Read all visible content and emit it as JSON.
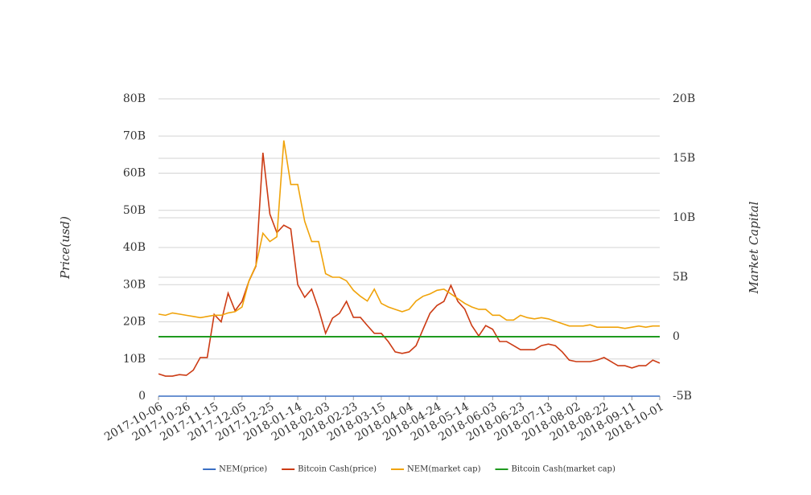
{
  "chart_data": {
    "type": "line",
    "y_label": "Price(usd)",
    "y2_label": "Market Capital",
    "x": [
      "2017-10-06",
      "2017-10-11",
      "2017-10-16",
      "2017-10-21",
      "2017-10-26",
      "2017-10-31",
      "2017-11-05",
      "2017-11-10",
      "2017-11-15",
      "2017-11-20",
      "2017-11-25",
      "2017-11-30",
      "2017-12-05",
      "2017-12-10",
      "2017-12-15",
      "2017-12-20",
      "2017-12-25",
      "2017-12-30",
      "2018-01-04",
      "2018-01-09",
      "2018-01-14",
      "2018-01-19",
      "2018-01-24",
      "2018-01-29",
      "2018-02-03",
      "2018-02-08",
      "2018-02-13",
      "2018-02-18",
      "2018-02-23",
      "2018-02-28",
      "2018-03-05",
      "2018-03-10",
      "2018-03-15",
      "2018-03-20",
      "2018-03-25",
      "2018-03-30",
      "2018-04-04",
      "2018-04-09",
      "2018-04-14",
      "2018-04-19",
      "2018-04-24",
      "2018-04-29",
      "2018-05-04",
      "2018-05-09",
      "2018-05-14",
      "2018-05-19",
      "2018-05-24",
      "2018-05-29",
      "2018-06-03",
      "2018-06-08",
      "2018-06-13",
      "2018-06-18",
      "2018-06-23",
      "2018-06-28",
      "2018-07-03",
      "2018-07-08",
      "2018-07-13",
      "2018-07-18",
      "2018-07-23",
      "2018-07-28",
      "2018-08-02",
      "2018-08-07",
      "2018-08-12",
      "2018-08-17",
      "2018-08-22",
      "2018-08-27",
      "2018-09-01",
      "2018-09-06",
      "2018-09-11",
      "2018-09-16",
      "2018-09-21",
      "2018-09-26",
      "2018-10-01"
    ],
    "xlim": [
      "2017-10-06",
      "2018-10-01"
    ],
    "xticks": [
      "2017-10-06",
      "2017-10-26",
      "2017-11-15",
      "2017-12-05",
      "2017-12-25",
      "2018-01-14",
      "2018-02-03",
      "2018-02-23",
      "2018-03-15",
      "2018-04-04",
      "2018-04-24",
      "2018-05-14",
      "2018-06-03",
      "2018-06-23",
      "2018-07-13",
      "2018-08-02",
      "2018-08-22",
      "2018-09-11",
      "2018-10-01"
    ],
    "ylim": [
      0,
      80000000000.0
    ],
    "yticks": [
      0,
      {
        "value": 10000000000.0,
        "label": "10B"
      },
      {
        "value": 20000000000.0,
        "label": "20B"
      },
      {
        "value": 30000000000.0,
        "label": "30B"
      },
      {
        "value": 40000000000.0,
        "label": "40B"
      },
      {
        "value": 50000000000.0,
        "label": "50B"
      },
      {
        "value": 60000000000.0,
        "label": "60B"
      },
      {
        "value": 70000000000.0,
        "label": "70B"
      },
      {
        "value": 80000000000.0,
        "label": "80B"
      }
    ],
    "y2lim": [
      -5000000000.0,
      20000000000.0
    ],
    "y2ticks": [
      {
        "value": -5000000000.0,
        "label": "-5B"
      },
      0,
      {
        "value": 5000000000.0,
        "label": "5B"
      },
      {
        "value": 10000000000.0,
        "label": "10B"
      },
      {
        "value": 15000000000.0,
        "label": "15B"
      },
      {
        "value": 20000000000.0,
        "label": "20B"
      }
    ],
    "grid": true,
    "legend": "bottom",
    "series": [
      {
        "name": "NEM(price)",
        "color": "#3a6fc4",
        "values": [
          0,
          0,
          0,
          0,
          0,
          0,
          0,
          0,
          0,
          0,
          0,
          0,
          0,
          0,
          0,
          0,
          0,
          0,
          0,
          0,
          0,
          0,
          0,
          0,
          0,
          0,
          0,
          0,
          0,
          0,
          0,
          0,
          0,
          0,
          0,
          0,
          0,
          0,
          0,
          0,
          0,
          0,
          0,
          0,
          0,
          0,
          0,
          0,
          0,
          0,
          0,
          0,
          0,
          0,
          0,
          0,
          0,
          0,
          0,
          0,
          0,
          0,
          0,
          0,
          0,
          0,
          0,
          0,
          0,
          0,
          0,
          0,
          0
        ]
      },
      {
        "name": "Bitcoin Cash(price)",
        "color": "#cc3b14",
        "values": [
          6000000000.0,
          5400000000.0,
          5400000000.0,
          5800000000.0,
          5600000000.0,
          7000000000.0,
          10400000000.0,
          10400000000.0,
          22000000000.0,
          20000000000.0,
          27700000000.0,
          23000000000.0,
          25500000000.0,
          31000000000.0,
          35000000000.0,
          65500000000.0,
          49000000000.0,
          44000000000.0,
          46000000000.0,
          45000000000.0,
          30000000000.0,
          26600000000.0,
          28800000000.0,
          23400000000.0,
          16900000000.0,
          21000000000.0,
          22300000000.0,
          25500000000.0,
          21200000000.0,
          21200000000.0,
          19000000000.0,
          16900000000.0,
          16900000000.0,
          14700000000.0,
          11900000000.0,
          11500000000.0,
          11900000000.0,
          13600000000.0,
          18000000000.0,
          22300000000.0,
          24400000000.0,
          25500000000.0,
          29800000000.0,
          25500000000.0,
          23400000000.0,
          19000000000.0,
          16200000000.0,
          19000000000.0,
          18000000000.0,
          14700000000.0,
          14700000000.0,
          13600000000.0,
          12500000000.0,
          12500000000.0,
          12500000000.0,
          13600000000.0,
          14000000000.0,
          13600000000.0,
          11900000000.0,
          9700000000.0,
          9300000000.0,
          9300000000.0,
          9300000000.0,
          9700000000.0,
          10400000000.0,
          9300000000.0,
          8200000000.0,
          8200000000.0,
          7600000000.0,
          8200000000.0,
          8200000000.0,
          9700000000.0,
          8900000000.0
        ]
      },
      {
        "name": "NEM(market cap)",
        "color": "#f0a30a",
        "axis": "y2",
        "values": [
          1900000000.0,
          1800000000.0,
          2000000000.0,
          1900000000.0,
          1800000000.0,
          1700000000.0,
          1600000000.0,
          1700000000.0,
          1800000000.0,
          1800000000.0,
          2000000000.0,
          2100000000.0,
          2500000000.0,
          4700000000.0,
          6000000000.0,
          8700000000.0,
          8000000000.0,
          8400000000.0,
          16500000000.0,
          12800000000.0,
          12800000000.0,
          9700000000.0,
          8000000000.0,
          8000000000.0,
          5300000000.0,
          5000000000.0,
          5000000000.0,
          4700000000.0,
          3900000000.0,
          3400000000.0,
          3000000000.0,
          4000000000.0,
          2800000000.0,
          2500000000.0,
          2300000000.0,
          2100000000.0,
          2300000000.0,
          3000000000.0,
          3400000000.0,
          3600000000.0,
          3900000000.0,
          4000000000.0,
          3600000000.0,
          3200000000.0,
          2800000000.0,
          2500000000.0,
          2300000000.0,
          2300000000.0,
          1800000000.0,
          1800000000.0,
          1400000000.0,
          1400000000.0,
          1800000000.0,
          1600000000.0,
          1500000000.0,
          1600000000.0,
          1500000000.0,
          1300000000.0,
          1100000000.0,
          900000000.0,
          900000000.0,
          900000000.0,
          1000000000.0,
          800000000.0,
          800000000.0,
          800000000.0,
          800000000.0,
          700000000.0,
          800000000.0,
          900000000.0,
          800000000.0,
          900000000.0,
          900000000.0
        ]
      },
      {
        "name": "Bitcoin Cash(market cap)",
        "color": "#1f9a1f",
        "axis": "y2",
        "values": [
          0,
          0,
          0,
          0,
          0,
          0,
          0,
          0,
          0,
          0,
          0,
          0,
          0,
          0,
          0,
          0,
          0,
          0,
          0,
          0,
          0,
          0,
          0,
          0,
          0,
          0,
          0,
          0,
          0,
          0,
          0,
          0,
          0,
          0,
          0,
          0,
          0,
          0,
          0,
          0,
          0,
          0,
          0,
          0,
          0,
          0,
          0,
          0,
          0,
          0,
          0,
          0,
          0,
          0,
          0,
          0,
          0,
          0,
          0,
          0,
          0,
          0,
          0,
          0,
          0,
          0,
          0,
          0,
          0,
          0,
          0,
          0,
          0
        ]
      }
    ]
  }
}
